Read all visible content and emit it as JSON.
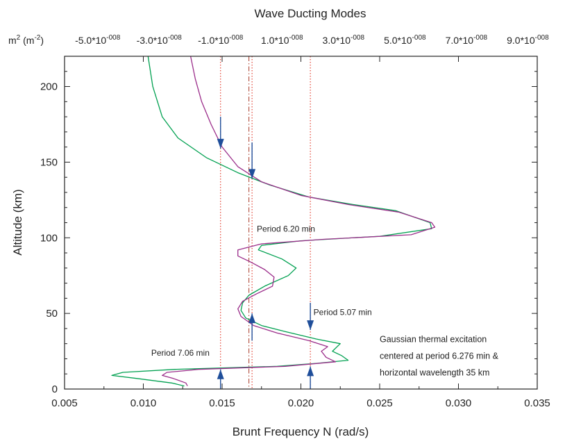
{
  "chart_data": {
    "type": "line",
    "title": "Wave Ducting Modes",
    "xlabel": "Brunt Frequency N (rad/s)",
    "ylabel": "Altitude (km)",
    "top_axis_label": "m",
    "top_axis_label_sup": "2",
    "top_axis_label_unit": " (m",
    "top_axis_label_unit_sup": "-2",
    "top_axis_label_close": ")",
    "xlim": [
      0.005,
      0.035
    ],
    "ylim": [
      0,
      220
    ],
    "x_ticks": [
      0.005,
      0.01,
      0.015,
      0.02,
      0.025,
      0.03,
      0.035
    ],
    "x_tick_labels": [
      "0.005",
      "0.010",
      "0.015",
      "0.020",
      "0.025",
      "0.030",
      "0.035"
    ],
    "y_ticks": [
      0,
      50,
      100,
      150,
      200
    ],
    "y_tick_labels": [
      "0",
      "50",
      "100",
      "150",
      "200"
    ],
    "top_ticks": [
      {
        "base": "-5.0*10",
        "exp": "-008",
        "x": 0.0071
      },
      {
        "base": "-3.0*10",
        "exp": "-008",
        "x": 0.011
      },
      {
        "base": "-1.0*10",
        "exp": "-008",
        "x": 0.0149
      },
      {
        "base": "1.0*10",
        "exp": "-008",
        "x": 0.0188
      },
      {
        "base": "3.0*10",
        "exp": "-008",
        "x": 0.0227
      },
      {
        "base": "5.0*10",
        "exp": "-008",
        "x": 0.0266
      },
      {
        "base": "7.0*10",
        "exp": "-008",
        "x": 0.0305
      },
      {
        "base": "9.0*10",
        "exp": "-008",
        "x": 0.0344
      }
    ],
    "series": [
      {
        "color": "#00a050",
        "points": [
          [
            0.0126,
            2
          ],
          [
            0.0118,
            4
          ],
          [
            0.0096,
            7
          ],
          [
            0.008,
            9
          ],
          [
            0.0087,
            11
          ],
          [
            0.012,
            13
          ],
          [
            0.0185,
            15
          ],
          [
            0.021,
            17
          ],
          [
            0.023,
            19
          ],
          [
            0.0226,
            22
          ],
          [
            0.022,
            25
          ],
          [
            0.0225,
            30
          ],
          [
            0.021,
            33
          ],
          [
            0.019,
            38
          ],
          [
            0.0175,
            42
          ],
          [
            0.0165,
            47
          ],
          [
            0.0162,
            52
          ],
          [
            0.0163,
            57
          ],
          [
            0.0167,
            62
          ],
          [
            0.0177,
            68
          ],
          [
            0.0192,
            75
          ],
          [
            0.0197,
            80
          ],
          [
            0.0188,
            86
          ],
          [
            0.0173,
            92
          ],
          [
            0.0175,
            95
          ],
          [
            0.02,
            98
          ],
          [
            0.025,
            101
          ],
          [
            0.0283,
            106
          ],
          [
            0.0282,
            110
          ],
          [
            0.026,
            118
          ],
          [
            0.0233,
            122
          ],
          [
            0.0205,
            127
          ],
          [
            0.018,
            135
          ],
          [
            0.016,
            143
          ],
          [
            0.014,
            153
          ],
          [
            0.0122,
            166
          ],
          [
            0.0112,
            180
          ],
          [
            0.0106,
            200
          ],
          [
            0.0103,
            220
          ]
        ]
      },
      {
        "color": "#9b2d8a",
        "points": [
          [
            0.0128,
            2
          ],
          [
            0.0127,
            4
          ],
          [
            0.0119,
            7
          ],
          [
            0.0112,
            9
          ],
          [
            0.0115,
            11
          ],
          [
            0.0135,
            13
          ],
          [
            0.019,
            15
          ],
          [
            0.0222,
            18
          ],
          [
            0.0216,
            21
          ],
          [
            0.0213,
            25
          ],
          [
            0.0217,
            28
          ],
          [
            0.0205,
            32
          ],
          [
            0.0185,
            37
          ],
          [
            0.017,
            42
          ],
          [
            0.0162,
            48
          ],
          [
            0.016,
            53
          ],
          [
            0.0163,
            58
          ],
          [
            0.0172,
            63
          ],
          [
            0.0182,
            68
          ],
          [
            0.0183,
            74
          ],
          [
            0.0177,
            79
          ],
          [
            0.0168,
            84
          ],
          [
            0.016,
            88
          ],
          [
            0.016,
            92
          ],
          [
            0.0175,
            96
          ],
          [
            0.0215,
            99
          ],
          [
            0.027,
            102
          ],
          [
            0.0285,
            107
          ],
          [
            0.0283,
            110
          ],
          [
            0.0262,
            117
          ],
          [
            0.023,
            122
          ],
          [
            0.02,
            128
          ],
          [
            0.0175,
            137
          ],
          [
            0.016,
            147
          ],
          [
            0.015,
            160
          ],
          [
            0.0143,
            175
          ],
          [
            0.0137,
            190
          ],
          [
            0.0133,
            205
          ],
          [
            0.013,
            220
          ]
        ]
      }
    ],
    "vertical_lines": [
      {
        "x": 0.0149,
        "color": "#e03020",
        "style": "dotted"
      },
      {
        "x": 0.0167,
        "color": "#b04a3a",
        "style": "dashdot"
      },
      {
        "x": 0.0169,
        "color": "#e03020",
        "style": "dotted"
      },
      {
        "x": 0.0206,
        "color": "#e03020",
        "style": "dotted"
      }
    ],
    "arrows": [
      {
        "x": 0.0149,
        "y_from": 180,
        "y_to": 159,
        "direction": "down"
      },
      {
        "x": 0.0169,
        "y_from": 163,
        "y_to": 139,
        "direction": "down"
      },
      {
        "x": 0.0169,
        "y_from": 32,
        "y_to": 50,
        "direction": "up"
      },
      {
        "x": 0.0149,
        "y_from": 0,
        "y_to": 13,
        "direction": "up"
      },
      {
        "x": 0.0206,
        "y_from": 57,
        "y_to": 39,
        "direction": "down"
      },
      {
        "x": 0.0206,
        "y_from": 0,
        "y_to": 15,
        "direction": "up"
      }
    ],
    "annotations": [
      {
        "text": "Period 6.20 min",
        "x": 0.0172,
        "y": 104
      },
      {
        "text": "Period 5.07 min",
        "x": 0.0208,
        "y": 49
      },
      {
        "text": "Period 7.06 min",
        "x": 0.0105,
        "y": 22
      }
    ],
    "note_lines": [
      "Gaussian thermal excitation",
      "centered at period 6.276 min &",
      "horizontal wavelength 35 km"
    ],
    "note_position": {
      "x": 0.025,
      "y": 31
    }
  }
}
